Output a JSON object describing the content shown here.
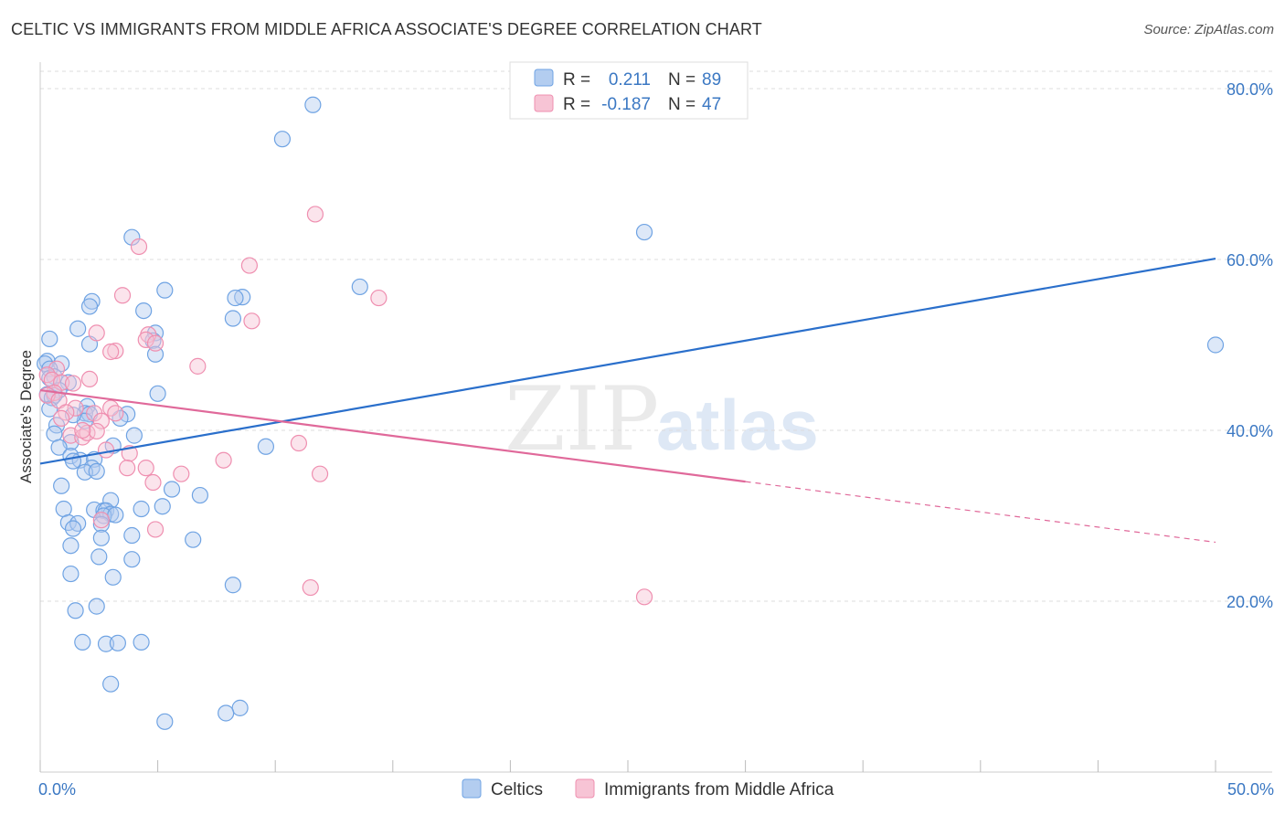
{
  "header": {
    "title": "CELTIC VS IMMIGRANTS FROM MIDDLE AFRICA ASSOCIATE'S DEGREE CORRELATION CHART",
    "source": "Source: ZipAtlas.com"
  },
  "watermark": {
    "zip": "ZIP",
    "atlas": "atlas"
  },
  "colors": {
    "celtic": "#6fa3e3",
    "celtic_fill": "#b3cdf0",
    "celtic_line": "#2a6fcb",
    "immig": "#ef8fb0",
    "immig_fill": "#f7c4d5",
    "immig_line": "#e0699a",
    "axis_text": "#3b78c3",
    "grid": "#dddddd"
  },
  "legend": {
    "r_label": "R =",
    "n_label": "N =",
    "celtic_r": "0.211",
    "celtic_n": "89",
    "immig_r": "-0.187",
    "immig_n": "47"
  },
  "bottom_legend": {
    "celtic": "Celtics",
    "immig": "Immigrants from Middle Africa"
  },
  "chart_data": {
    "type": "scatter",
    "title": "CELTIC VS IMMIGRANTS FROM MIDDLE AFRICA ASSOCIATE'S DEGREE CORRELATION CHART",
    "xlabel": "",
    "ylabel": "Associate's Degree",
    "xlim": [
      0,
      50
    ],
    "ylim": [
      0,
      80
    ],
    "x_tick_labels": [
      "0.0%",
      "50.0%"
    ],
    "y_ticks": [
      20,
      40,
      60,
      80
    ],
    "y_tick_labels": [
      "20.0%",
      "40.0%",
      "60.0%",
      "80.0%"
    ],
    "series": [
      {
        "name": "Celtics",
        "R": 0.211,
        "N": 89,
        "trend": {
          "x0": 0,
          "y0": 36.1,
          "x1": 50,
          "y1": 60.1
        },
        "points": [
          [
            11.6,
            78.1
          ],
          [
            10.3,
            74.1
          ],
          [
            25.7,
            63.2
          ],
          [
            3.9,
            62.6
          ],
          [
            13.6,
            56.8
          ],
          [
            5.3,
            56.4
          ],
          [
            8.6,
            55.6
          ],
          [
            8.3,
            55.5
          ],
          [
            2.2,
            55.1
          ],
          [
            2.1,
            54.5
          ],
          [
            4.4,
            54.0
          ],
          [
            8.2,
            53.1
          ],
          [
            1.6,
            51.9
          ],
          [
            4.9,
            51.4
          ],
          [
            4.8,
            50.5
          ],
          [
            0.4,
            50.7
          ],
          [
            2.1,
            50.1
          ],
          [
            4.9,
            48.9
          ],
          [
            50.0,
            50.0
          ],
          [
            0.3,
            48.1
          ],
          [
            0.2,
            47.8
          ],
          [
            0.9,
            47.8
          ],
          [
            0.4,
            47.2
          ],
          [
            0.6,
            46.3
          ],
          [
            0.4,
            46.1
          ],
          [
            1.2,
            45.6
          ],
          [
            0.8,
            44.7
          ],
          [
            0.3,
            44.2
          ],
          [
            0.6,
            44.1
          ],
          [
            0.5,
            43.8
          ],
          [
            5.0,
            44.3
          ],
          [
            0.4,
            42.5
          ],
          [
            2.0,
            42.8
          ],
          [
            1.9,
            42.0
          ],
          [
            3.7,
            41.9
          ],
          [
            2.1,
            41.9
          ],
          [
            1.9,
            41.1
          ],
          [
            1.4,
            41.8
          ],
          [
            3.4,
            41.4
          ],
          [
            0.7,
            40.6
          ],
          [
            0.6,
            39.6
          ],
          [
            4.0,
            39.4
          ],
          [
            1.3,
            38.6
          ],
          [
            3.1,
            38.2
          ],
          [
            9.6,
            38.1
          ],
          [
            0.8,
            38.0
          ],
          [
            1.3,
            37.0
          ],
          [
            1.7,
            36.5
          ],
          [
            2.3,
            36.6
          ],
          [
            1.4,
            36.4
          ],
          [
            2.2,
            35.6
          ],
          [
            1.9,
            35.1
          ],
          [
            2.4,
            35.2
          ],
          [
            0.9,
            33.5
          ],
          [
            5.6,
            33.1
          ],
          [
            6.8,
            32.4
          ],
          [
            3.0,
            31.8
          ],
          [
            5.2,
            31.1
          ],
          [
            4.3,
            30.8
          ],
          [
            1.0,
            30.8
          ],
          [
            2.3,
            30.7
          ],
          [
            2.7,
            30.6
          ],
          [
            2.8,
            30.6
          ],
          [
            3.0,
            30.2
          ],
          [
            2.7,
            30.0
          ],
          [
            3.2,
            30.1
          ],
          [
            1.2,
            29.2
          ],
          [
            1.6,
            29.1
          ],
          [
            2.6,
            29.0
          ],
          [
            1.4,
            28.5
          ],
          [
            2.6,
            27.4
          ],
          [
            3.9,
            27.7
          ],
          [
            6.5,
            27.2
          ],
          [
            1.3,
            26.5
          ],
          [
            2.5,
            25.2
          ],
          [
            3.9,
            24.9
          ],
          [
            3.1,
            22.8
          ],
          [
            1.3,
            23.2
          ],
          [
            8.2,
            21.9
          ],
          [
            2.4,
            19.4
          ],
          [
            1.5,
            18.9
          ],
          [
            1.8,
            15.2
          ],
          [
            2.8,
            15.0
          ],
          [
            3.3,
            15.1
          ],
          [
            4.3,
            15.2
          ],
          [
            3.0,
            10.3
          ],
          [
            8.5,
            7.5
          ],
          [
            7.9,
            6.9
          ],
          [
            5.3,
            5.9
          ]
        ]
      },
      {
        "name": "Immigrants from Middle Africa",
        "R": -0.187,
        "N": 47,
        "trend": {
          "x0": 0,
          "y0": 44.7,
          "x1": 30,
          "y1": 34.0,
          "x2": 50,
          "y2": 26.9
        },
        "points": [
          [
            11.7,
            65.3
          ],
          [
            4.2,
            61.5
          ],
          [
            8.9,
            59.3
          ],
          [
            14.4,
            55.5
          ],
          [
            3.5,
            55.8
          ],
          [
            9.0,
            52.8
          ],
          [
            2.4,
            51.4
          ],
          [
            4.6,
            51.2
          ],
          [
            4.5,
            50.6
          ],
          [
            4.9,
            50.2
          ],
          [
            3.2,
            49.3
          ],
          [
            3.0,
            49.2
          ],
          [
            6.7,
            47.5
          ],
          [
            0.7,
            47.2
          ],
          [
            0.3,
            46.5
          ],
          [
            0.5,
            45.9
          ],
          [
            0.9,
            45.6
          ],
          [
            1.4,
            45.5
          ],
          [
            2.1,
            46.0
          ],
          [
            0.6,
            44.4
          ],
          [
            0.3,
            44.1
          ],
          [
            0.8,
            43.5
          ],
          [
            1.5,
            42.6
          ],
          [
            3.0,
            42.6
          ],
          [
            1.1,
            42.1
          ],
          [
            2.3,
            42.0
          ],
          [
            3.2,
            42.0
          ],
          [
            0.9,
            41.4
          ],
          [
            2.6,
            41.1
          ],
          [
            1.3,
            39.4
          ],
          [
            1.8,
            39.2
          ],
          [
            2.0,
            39.7
          ],
          [
            2.4,
            39.9
          ],
          [
            1.8,
            40.0
          ],
          [
            11.0,
            38.5
          ],
          [
            2.8,
            37.7
          ],
          [
            3.8,
            37.3
          ],
          [
            7.8,
            36.5
          ],
          [
            3.7,
            35.6
          ],
          [
            4.5,
            35.6
          ],
          [
            6.0,
            34.9
          ],
          [
            11.9,
            34.9
          ],
          [
            4.8,
            33.9
          ],
          [
            2.6,
            29.5
          ],
          [
            4.9,
            28.4
          ],
          [
            11.5,
            21.6
          ],
          [
            25.7,
            20.5
          ]
        ]
      }
    ]
  }
}
